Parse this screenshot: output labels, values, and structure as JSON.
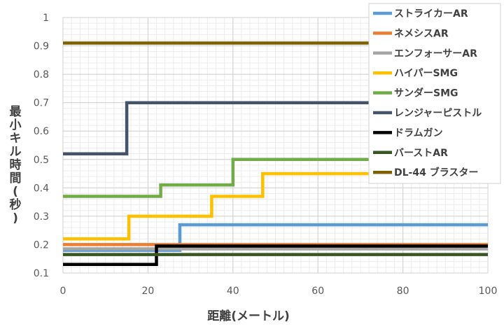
{
  "chart_data": {
    "type": "line",
    "step": true,
    "xlabel": "距離(メートル)",
    "ylabel": "最小キル時間(秒)",
    "xlim": [
      0,
      100
    ],
    "ylim": [
      0.1,
      1.0
    ],
    "xticks": [
      "0",
      "20",
      "40",
      "60",
      "80",
      "100"
    ],
    "yticks": [
      "0.1",
      "0.2",
      "0.3",
      "0.4",
      "0.5",
      "0.6",
      "0.7",
      "0.8",
      "0.9",
      "1"
    ],
    "grid": true,
    "legend_position": "top-right",
    "series": [
      {
        "name": "ストライカーAR",
        "color": "#5b9bd5",
        "points": [
          [
            0,
            0.18
          ],
          [
            27.5,
            0.18
          ],
          [
            27.5,
            0.27
          ],
          [
            100,
            0.27
          ]
        ]
      },
      {
        "name": "ネメシスAR",
        "color": "#ed7d31",
        "points": [
          [
            0,
            0.2
          ],
          [
            100,
            0.2
          ]
        ]
      },
      {
        "name": "エンフォーサーAR",
        "color": "#a5a5a5",
        "points": [
          [
            0,
            0.185
          ],
          [
            100,
            0.185
          ]
        ]
      },
      {
        "name": "ハイパーSMG",
        "color": "#ffc000",
        "points": [
          [
            0,
            0.22
          ],
          [
            15.5,
            0.22
          ],
          [
            15.5,
            0.3
          ],
          [
            35,
            0.3
          ],
          [
            35,
            0.37
          ],
          [
            47,
            0.37
          ],
          [
            47,
            0.45
          ],
          [
            100,
            0.45
          ]
        ]
      },
      {
        "name": "サンダーSMG",
        "color": "#70ad47",
        "points": [
          [
            0,
            0.37
          ],
          [
            23,
            0.37
          ],
          [
            23,
            0.41
          ],
          [
            40,
            0.41
          ],
          [
            40,
            0.5
          ],
          [
            100,
            0.5
          ]
        ]
      },
      {
        "name": "レンジャーピストル",
        "color": "#44546a",
        "points": [
          [
            0,
            0.52
          ],
          [
            15,
            0.52
          ],
          [
            15,
            0.7
          ],
          [
            100,
            0.7
          ]
        ]
      },
      {
        "name": "ドラムガン",
        "color": "#000000",
        "points": [
          [
            0,
            0.13
          ],
          [
            22,
            0.13
          ],
          [
            22,
            0.195
          ],
          [
            100,
            0.195
          ]
        ]
      },
      {
        "name": "バーストAR",
        "color": "#375623",
        "points": [
          [
            0,
            0.165
          ],
          [
            100,
            0.165
          ]
        ]
      },
      {
        "name": "DL-44 ブラスター",
        "color": "#7f6000",
        "points": [
          [
            0,
            0.91
          ],
          [
            100,
            0.91
          ]
        ]
      }
    ]
  }
}
